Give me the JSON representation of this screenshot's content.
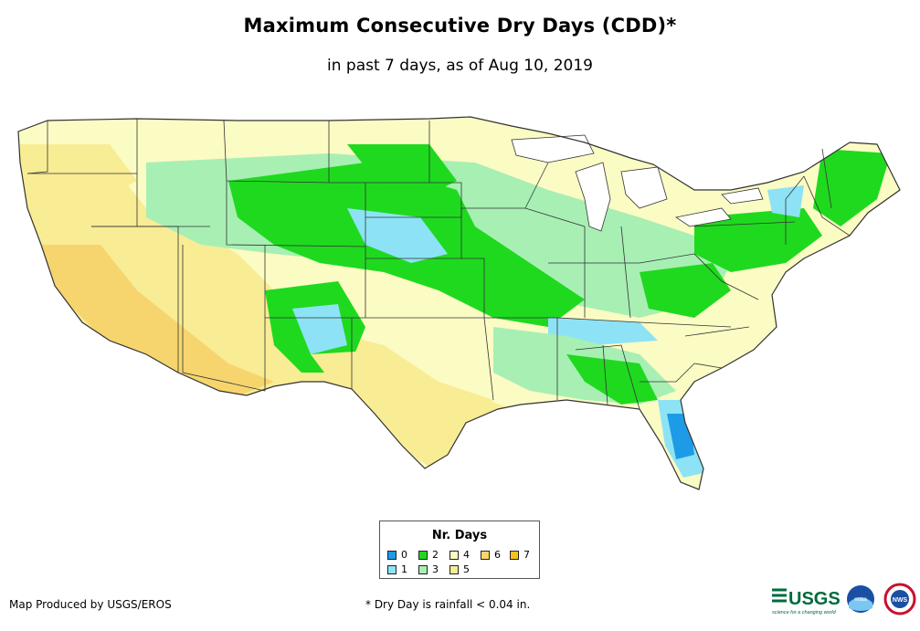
{
  "title": "Maximum Consecutive Dry Days (CDD)*",
  "subtitle": "in past 7 days, as of Aug 10, 2019",
  "legend": {
    "title": "Nr. Days",
    "items": [
      {
        "label": "0",
        "color": "#1e9be6"
      },
      {
        "label": "1",
        "color": "#8de3f5"
      },
      {
        "label": "2",
        "color": "#1fd91f"
      },
      {
        "label": "3",
        "color": "#a8efb4"
      },
      {
        "label": "4",
        "color": "#fbfbc4"
      },
      {
        "label": "5",
        "color": "#f8ec94"
      },
      {
        "label": "6",
        "color": "#f7d56e"
      },
      {
        "label": "7",
        "color": "#f7c31a"
      }
    ]
  },
  "credit": "Map Produced by USGS/EROS",
  "footnote": "* Dry Day is rainfall < 0.04 in.",
  "logos": {
    "usgs_text": "USGS",
    "usgs_tagline": "science for a changing world",
    "noaa_text": "noaa",
    "nws_text": "NWS"
  },
  "colors": {
    "state_border": "#333333",
    "background": "#ffffff"
  }
}
